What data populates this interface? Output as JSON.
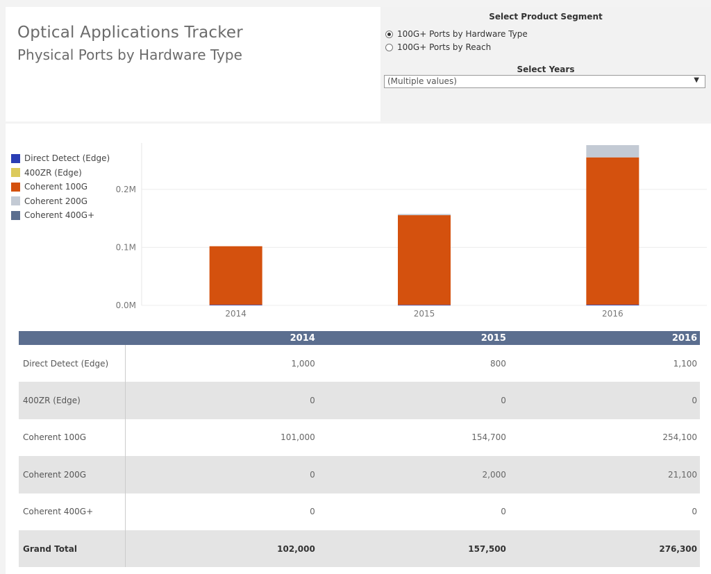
{
  "header": {
    "title": "Optical Applications Tracker",
    "subtitle": "Physical Ports by Hardware Type"
  },
  "filters": {
    "segment_title": "Select Product Segment",
    "segment_options": [
      {
        "label": "100G+ Ports by Hardware Type",
        "selected": true
      },
      {
        "label": "100G+ Ports by Reach",
        "selected": false
      }
    ],
    "years_title": "Select Years",
    "years_value": "(Multiple values)",
    "dropdown_arrow": "▼"
  },
  "chart_data": {
    "type": "bar",
    "stacked": true,
    "categories": [
      "2014",
      "2015",
      "2016"
    ],
    "series": [
      {
        "name": "Direct Detect (Edge)",
        "color": "#2a3db4",
        "values": [
          1000,
          800,
          1100
        ]
      },
      {
        "name": "400ZR (Edge)",
        "color": "#dcca5c",
        "values": [
          0,
          0,
          0
        ]
      },
      {
        "name": "Coherent 100G",
        "color": "#d4510e",
        "values": [
          101000,
          154700,
          254100
        ]
      },
      {
        "name": "Coherent 200G",
        "color": "#c3cad4",
        "values": [
          0,
          2000,
          21100
        ]
      },
      {
        "name": "Coherent 400G+",
        "color": "#5b6e8f",
        "values": [
          0,
          0,
          0
        ]
      }
    ],
    "ylim": [
      0,
      280000
    ],
    "yticks": [
      0,
      100000,
      200000
    ],
    "ytick_labels": [
      "0.0M",
      "0.1M",
      "0.2M"
    ],
    "grid": true,
    "legend": "left"
  },
  "table": {
    "columns": [
      "",
      "2014",
      "2015",
      "2016"
    ],
    "rows": [
      {
        "label": "Direct Detect (Edge)",
        "values": [
          "1,000",
          "800",
          "1,100"
        ]
      },
      {
        "label": "400ZR (Edge)",
        "values": [
          "0",
          "0",
          "0"
        ]
      },
      {
        "label": "Coherent 100G",
        "values": [
          "101,000",
          "154,700",
          "254,100"
        ]
      },
      {
        "label": "Coherent 200G",
        "values": [
          "0",
          "2,000",
          "21,100"
        ]
      },
      {
        "label": "Coherent 400G+",
        "values": [
          "0",
          "0",
          "0"
        ]
      }
    ],
    "total": {
      "label": "Grand Total",
      "values": [
        "102,000",
        "157,500",
        "276,300"
      ]
    }
  }
}
